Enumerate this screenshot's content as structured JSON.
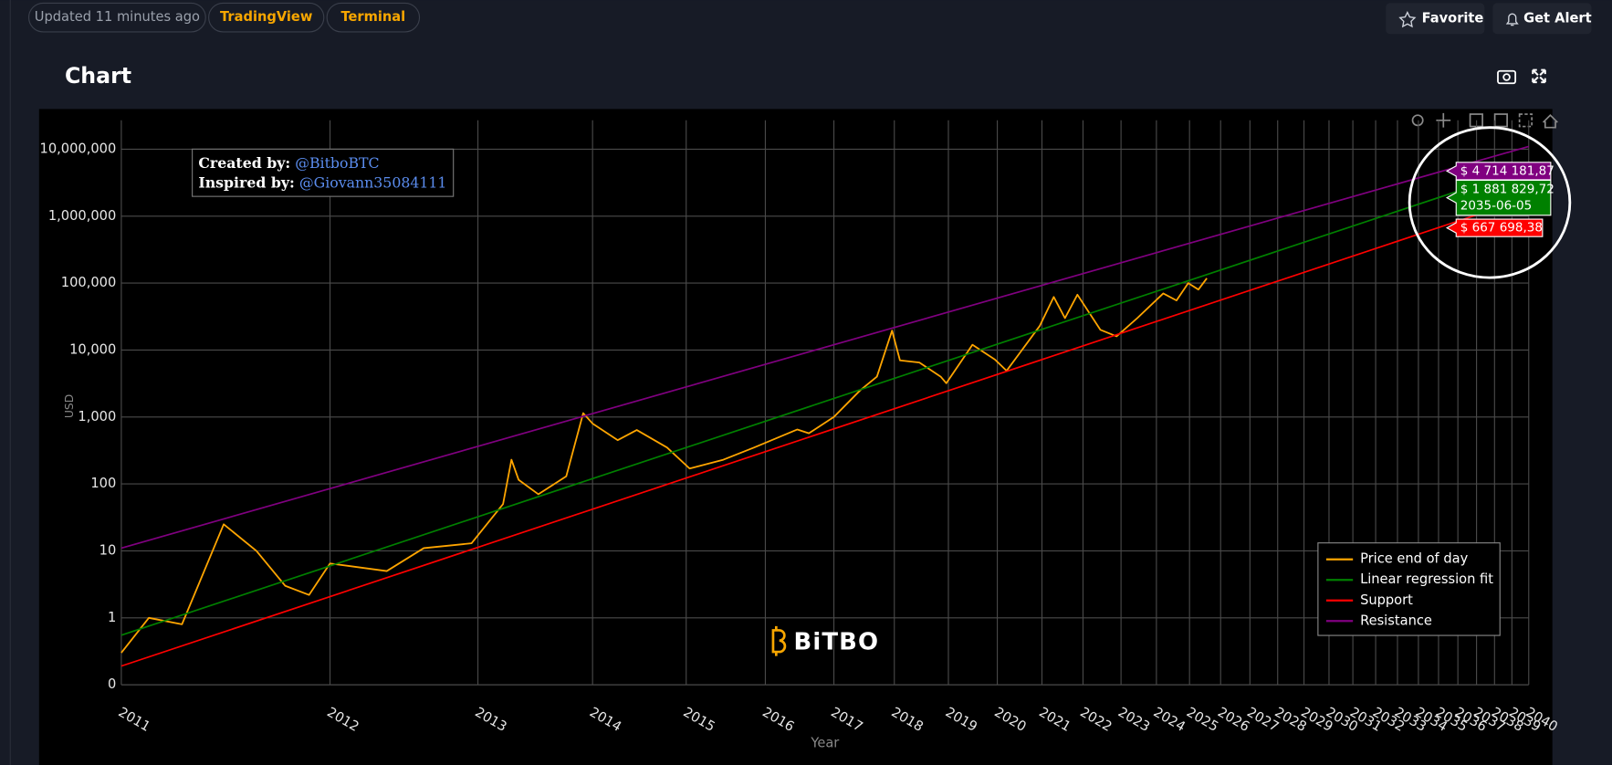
{
  "header": {
    "updated": "Updated 11 minutes ago",
    "links": [
      "TradingView",
      "Terminal"
    ],
    "buttons": [
      "Favorite",
      "Get Alert"
    ]
  },
  "panel_title": "Chart",
  "credits": [
    {
      "label": "Created by:",
      "handle": "@BitboBTC"
    },
    {
      "label": "Inspired by:",
      "handle": "@Giovann35084111"
    }
  ],
  "logo": "BiTBO",
  "chart_data": {
    "type": "line",
    "xlabel": "Year",
    "ylabel": "USD",
    "xscale": "log",
    "yscale": "log",
    "xlim": [
      2011,
      2040
    ],
    "ylim": [
      0.1,
      27000000
    ],
    "xticks": [
      2011,
      2012,
      2013,
      2014,
      2015,
      2016,
      2017,
      2018,
      2019,
      2020,
      2021,
      2022,
      2023,
      2024,
      2025,
      2026,
      2027,
      2028,
      2029,
      2030,
      2031,
      2032,
      2033,
      2034,
      2035,
      2036,
      2037,
      2038,
      2039,
      2040
    ],
    "yticks": [
      {
        "value": 0.1,
        "label": "0"
      },
      1,
      10,
      100,
      {
        "value": 1000,
        "label": "1,000"
      },
      {
        "value": 10000,
        "label": "10,000"
      },
      {
        "value": 100000,
        "label": "100,000"
      },
      {
        "value": 1000000,
        "label": "1,000,000"
      },
      {
        "value": 10000000,
        "label": "10,000,000"
      }
    ],
    "grid": true,
    "legend": "bottom-right",
    "series": [
      {
        "name": "Price end of day",
        "color": "#ffa500",
        "x": [
          2011.0,
          2011.11,
          2011.25,
          2011.44,
          2011.6,
          2011.75,
          2011.88,
          2012.0,
          2012.35,
          2012.6,
          2012.95,
          2013.2,
          2013.27,
          2013.33,
          2013.5,
          2013.75,
          2013.91,
          2014.0,
          2014.25,
          2014.45,
          2014.78,
          2015.04,
          2015.45,
          2015.85,
          2016.45,
          2016.62,
          2017.0,
          2017.42,
          2017.7,
          2017.96,
          2018.1,
          2018.45,
          2018.85,
          2018.96,
          2019.48,
          2019.95,
          2020.2,
          2020.5,
          2020.95,
          2021.28,
          2021.55,
          2021.86,
          2022.45,
          2022.88,
          2023.45,
          2024.2,
          2024.6,
          2024.96,
          2025.28,
          2025.55
        ],
        "values": [
          0.3,
          1.0,
          0.8,
          25,
          10,
          3,
          2.2,
          6.5,
          5,
          11,
          13,
          50,
          230,
          115,
          70,
          130,
          1140,
          800,
          450,
          640,
          350,
          170,
          230,
          350,
          650,
          570,
          1000,
          2500,
          4000,
          19500,
          7000,
          6500,
          4000,
          3200,
          12000,
          7200,
          4900,
          9200,
          23000,
          62000,
          30000,
          67000,
          20000,
          16000,
          30000,
          70000,
          55000,
          100000,
          80000,
          118000
        ]
      },
      {
        "name": "Linear regression fit",
        "color": "#008000",
        "x": [
          2011,
          2040
        ],
        "values": [
          0.55,
          5300000
        ]
      },
      {
        "name": "Support",
        "color": "#ff0000",
        "x": [
          2011,
          2040
        ],
        "values": [
          0.19,
          1900000
        ]
      },
      {
        "name": "Resistance",
        "color": "#800080",
        "x": [
          2011,
          2040
        ],
        "values": [
          11,
          11000000
        ]
      }
    ],
    "annotations": {
      "date": "2035-06-05",
      "points": [
        {
          "value": 4714181.87,
          "label": "$ 4 714 181,87",
          "color": "#800080"
        },
        {
          "value": 1881829.72,
          "label": "$ 1 881 829,72",
          "color": "#008000"
        },
        {
          "value": 667698.38,
          "label": "$ 667 698,38",
          "color": "#ff0000"
        }
      ]
    }
  }
}
